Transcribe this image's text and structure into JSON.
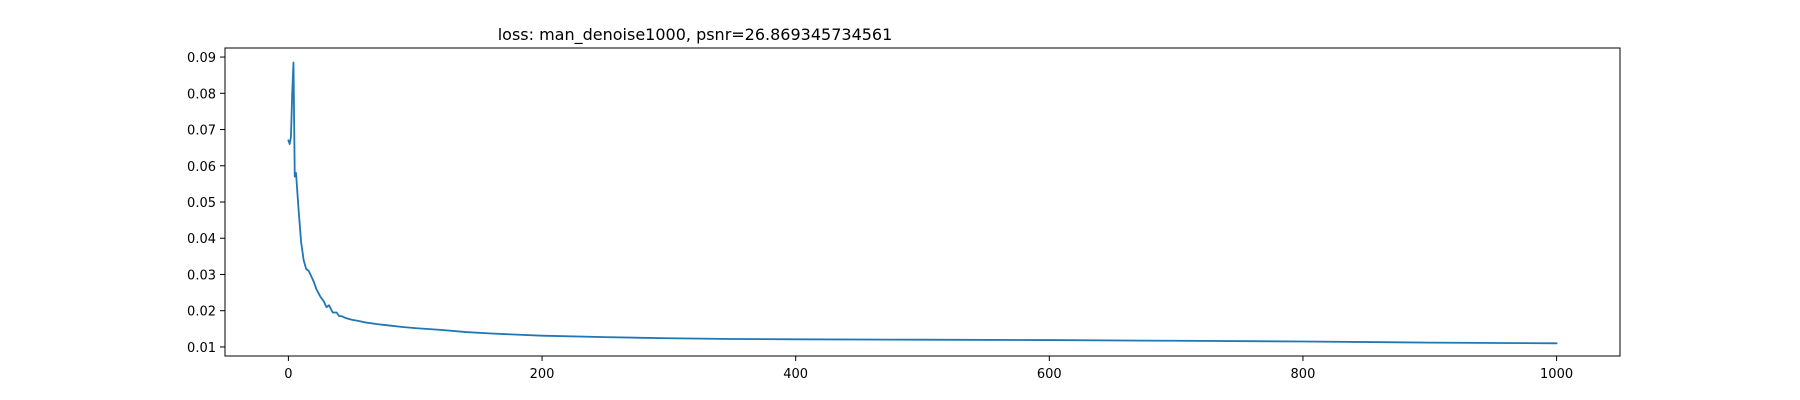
{
  "chart_data": {
    "type": "line",
    "title": "loss: man_denoise1000, psnr=26.869345734561",
    "xlabel": "",
    "ylabel": "",
    "xlim": [
      -50,
      1050
    ],
    "ylim": [
      0.0075,
      0.0925
    ],
    "x_ticks": [
      0,
      200,
      400,
      600,
      800,
      1000
    ],
    "x_tick_labels": [
      "0",
      "200",
      "400",
      "600",
      "800",
      "1000"
    ],
    "y_ticks": [
      0.01,
      0.02,
      0.03,
      0.04,
      0.05,
      0.06,
      0.07,
      0.08,
      0.09
    ],
    "y_tick_labels": [
      "0.01",
      "0.02",
      "0.03",
      "0.04",
      "0.05",
      "0.06",
      "0.07",
      "0.08",
      "0.09"
    ],
    "grid": false,
    "series_color": "#1f77b4",
    "series": [
      {
        "name": "",
        "x": [
          0,
          1,
          2,
          3,
          4,
          5,
          6,
          8,
          10,
          12,
          14,
          16,
          18,
          20,
          22,
          25,
          28,
          30,
          32,
          35,
          38,
          40,
          42,
          45,
          50,
          55,
          60,
          70,
          80,
          90,
          100,
          120,
          140,
          160,
          180,
          200,
          250,
          300,
          350,
          400,
          500,
          600,
          700,
          800,
          900,
          1000
        ],
        "y": [
          0.067,
          0.066,
          0.068,
          0.08,
          0.0885,
          0.057,
          0.058,
          0.048,
          0.039,
          0.034,
          0.0315,
          0.031,
          0.0295,
          0.028,
          0.026,
          0.024,
          0.0225,
          0.021,
          0.0215,
          0.0195,
          0.0195,
          0.0185,
          0.0185,
          0.018,
          0.0175,
          0.0172,
          0.0168,
          0.0163,
          0.0159,
          0.0155,
          0.0152,
          0.0147,
          0.0141,
          0.0137,
          0.0134,
          0.0131,
          0.0127,
          0.0124,
          0.0122,
          0.0121,
          0.012,
          0.0119,
          0.0117,
          0.0115,
          0.0112,
          0.011
        ]
      }
    ]
  }
}
